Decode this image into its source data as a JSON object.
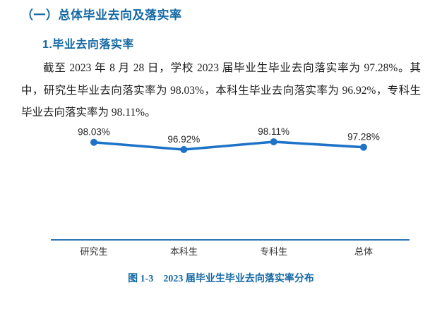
{
  "document": {
    "section_heading": "（一）总体毕业去向及落实率",
    "subsection_heading": "1.毕业去向落实率",
    "paragraph": "截至 2023 年 8 月 28 日，学校 2023 届毕业生毕业去向落实率为 97.28%。其中，研究生毕业去向落实率为 98.03%，本科生毕业去向落实率为 96.92%，专科生毕业去向落实率为 98.11%。",
    "figure_caption_label": "图 1-3",
    "figure_caption_text": "2023 届毕业生毕业去向落实率分布"
  },
  "colors": {
    "heading_blue": "#1368A4",
    "line_blue": "#1E73C8",
    "axis_blue": "#2E75B6",
    "body_text": "#1c1c1c",
    "data_label_text": "#262626"
  },
  "chart_data": {
    "type": "line",
    "categories": [
      "研究生",
      "本科生",
      "专科生",
      "总体"
    ],
    "values": [
      98.03,
      96.92,
      98.11,
      97.28
    ],
    "data_labels": [
      "98.03%",
      "96.92%",
      "98.11%",
      "97.28%"
    ],
    "title": "",
    "xlabel": "",
    "ylabel": "",
    "ylim": [
      83,
      100
    ],
    "grid": false,
    "legend": false,
    "marker": "circle",
    "line_color": "#1E73C8",
    "axis_color": "#2E75B6"
  }
}
